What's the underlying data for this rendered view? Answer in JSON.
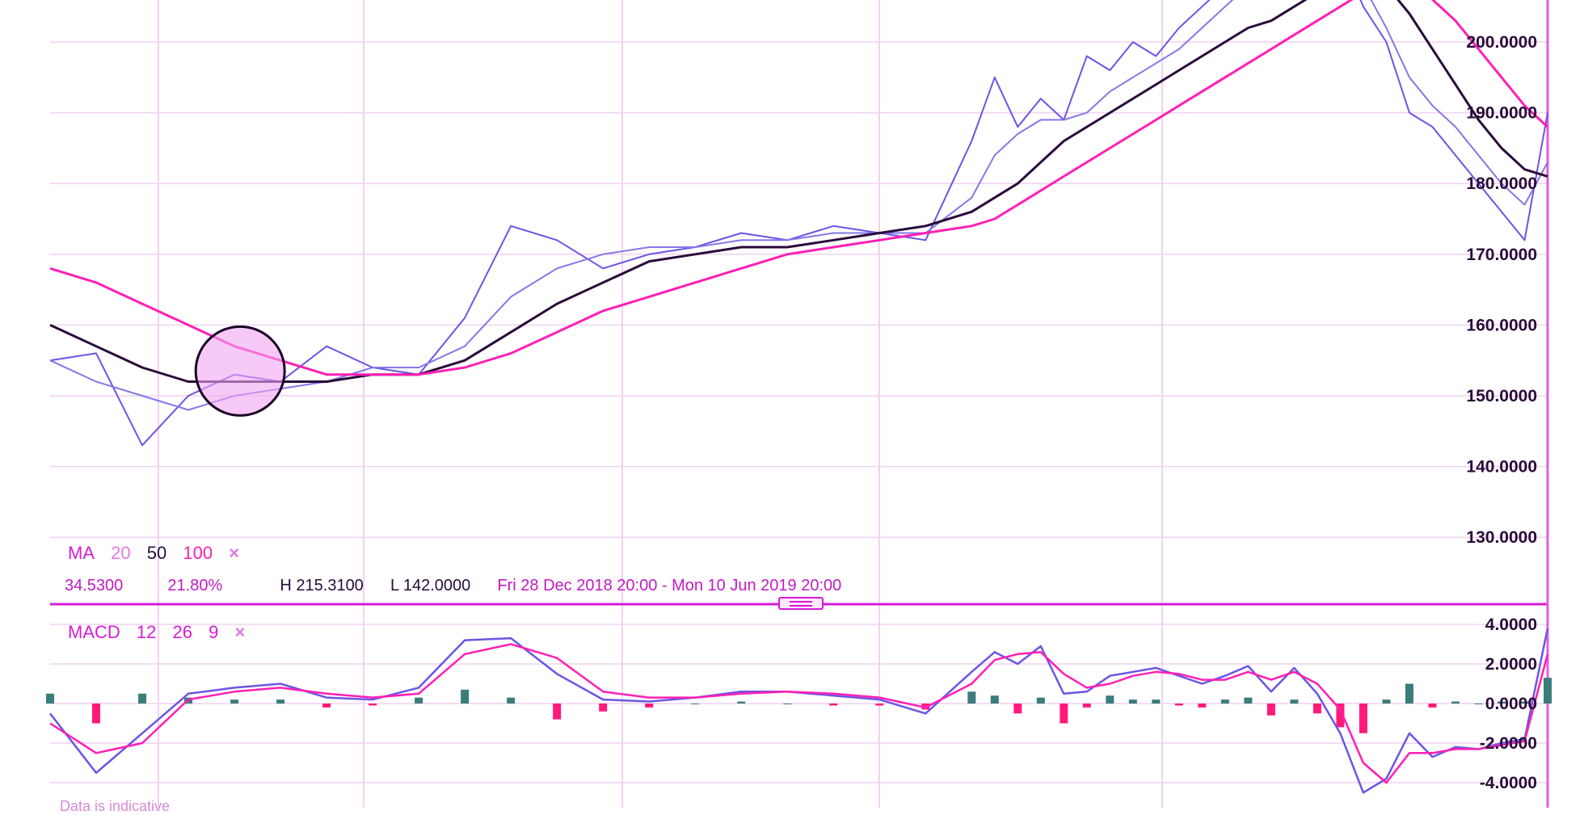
{
  "main_chart": {
    "y_ticks": [
      "200.0000",
      "190.0000",
      "180.0000",
      "170.0000",
      "160.0000",
      "150.0000",
      "140.0000",
      "130.0000"
    ],
    "indicator": {
      "name": "MA",
      "p1": "20",
      "p2": "50",
      "p3": "100",
      "close": "×"
    },
    "stats": {
      "change": "34.5300",
      "pct": "21.80%",
      "high": "H 215.3100",
      "low": "L 142.0000",
      "range": "Fri 28 Dec 2018 20:00 - Mon 10 Jun 2019 20:00"
    }
  },
  "macd_panel": {
    "y_ticks": [
      "4.0000",
      "2.0000",
      "0.0000",
      "-2.0000",
      "-4.0000"
    ],
    "indicator": {
      "name": "MACD",
      "p1": "12",
      "p2": "26",
      "p3": "9",
      "close": "×"
    }
  },
  "footer": {
    "partial_text": "Data is indicative"
  },
  "colors": {
    "price": "#6b55e6",
    "ma20": "#8477e8",
    "ma50": "#2a0a3a",
    "ma100": "#ff1fb4",
    "grid": "#f2d2f2",
    "accent": "#d61bd6",
    "hist_pos": "#3a7d7a",
    "hist_neg": "#ff1a7a"
  },
  "chart_data": [
    {
      "type": "line",
      "title": "",
      "ylim": [
        120,
        216
      ],
      "x": [
        0,
        8,
        16,
        24,
        32,
        40,
        48,
        56,
        64,
        72,
        80,
        88,
        96,
        104,
        112,
        120,
        128,
        136,
        144,
        152,
        160,
        164,
        168,
        172,
        176,
        180,
        184,
        188,
        192,
        196,
        200,
        204,
        208,
        212,
        216,
        220,
        224,
        228,
        232,
        236,
        240,
        244,
        248,
        252,
        256,
        260
      ],
      "series": [
        {
          "name": "price",
          "values": [
            155,
            156,
            143,
            150,
            153,
            152,
            157,
            154,
            153,
            161,
            174,
            172,
            168,
            170,
            171,
            173,
            172,
            174,
            173,
            172,
            186,
            195,
            188,
            192,
            189,
            198,
            196,
            200,
            198,
            202,
            205,
            208,
            212,
            209,
            210,
            214,
            213,
            205,
            200,
            190,
            188,
            184,
            180,
            176,
            172,
            190
          ]
        },
        {
          "name": "MA 20",
          "values": [
            155,
            152,
            150,
            148,
            150,
            151,
            152,
            154,
            154,
            157,
            164,
            168,
            170,
            171,
            171,
            172,
            172,
            173,
            173,
            173,
            178,
            184,
            187,
            189,
            189,
            190,
            193,
            195,
            197,
            199,
            202,
            205,
            208,
            209,
            210,
            211,
            212,
            208,
            202,
            195,
            191,
            188,
            184,
            180,
            177,
            183
          ]
        },
        {
          "name": "MA 50",
          "values": [
            160,
            157,
            154,
            152,
            152,
            152,
            152,
            153,
            153,
            155,
            159,
            163,
            166,
            169,
            170,
            171,
            171,
            172,
            173,
            174,
            176,
            178,
            180,
            183,
            186,
            188,
            190,
            192,
            194,
            196,
            198,
            200,
            202,
            203,
            205,
            207,
            209,
            210,
            208,
            204,
            199,
            194,
            189,
            185,
            182,
            181
          ]
        },
        {
          "name": "MA 100",
          "values": [
            168,
            166,
            163,
            160,
            157,
            155,
            153,
            153,
            153,
            154,
            156,
            159,
            162,
            164,
            166,
            168,
            170,
            171,
            172,
            173,
            174,
            175,
            177,
            179,
            181,
            183,
            185,
            187,
            189,
            191,
            193,
            195,
            197,
            199,
            201,
            203,
            205,
            207,
            208,
            208,
            206,
            203,
            199,
            195,
            191,
            188
          ]
        }
      ],
      "annotation": {
        "type": "circle",
        "x": 33,
        "y": 153.5
      }
    },
    {
      "type": "line",
      "title": "",
      "ylim": [
        -5,
        5
      ],
      "x": [
        0,
        8,
        16,
        24,
        32,
        40,
        48,
        56,
        64,
        72,
        80,
        88,
        96,
        104,
        112,
        120,
        128,
        136,
        144,
        152,
        160,
        164,
        168,
        172,
        176,
        180,
        184,
        188,
        192,
        196,
        200,
        204,
        208,
        212,
        216,
        220,
        224,
        228,
        232,
        236,
        240,
        244,
        248,
        252,
        256,
        260
      ],
      "series": [
        {
          "name": "MACD",
          "values": [
            -0.5,
            -3.5,
            -1.5,
            0.5,
            0.8,
            1.0,
            0.3,
            0.2,
            0.8,
            3.2,
            3.3,
            1.5,
            0.2,
            0.1,
            0.3,
            0.6,
            0.6,
            0.4,
            0.2,
            -0.5,
            1.6,
            2.6,
            2.0,
            2.9,
            0.5,
            0.6,
            1.4,
            1.6,
            1.8,
            1.4,
            1.0,
            1.4,
            1.9,
            0.6,
            1.8,
            0.5,
            -1.5,
            -4.5,
            -3.8,
            -1.5,
            -2.7,
            -2.2,
            -2.3,
            -2.0,
            -1.8,
            3.8
          ]
        },
        {
          "name": "Signal",
          "values": [
            -1.0,
            -2.5,
            -2.0,
            0.2,
            0.6,
            0.8,
            0.5,
            0.3,
            0.5,
            2.5,
            3.0,
            2.3,
            0.6,
            0.3,
            0.3,
            0.5,
            0.6,
            0.5,
            0.3,
            -0.2,
            1.0,
            2.2,
            2.5,
            2.6,
            1.5,
            0.8,
            1.0,
            1.4,
            1.6,
            1.5,
            1.2,
            1.2,
            1.6,
            1.2,
            1.6,
            1.0,
            -0.3,
            -3.0,
            -4.0,
            -2.5,
            -2.5,
            -2.3,
            -2.3,
            -2.1,
            -1.9,
            2.5
          ]
        },
        {
          "name": "Histogram",
          "values": [
            0.5,
            -1.0,
            0.5,
            0.3,
            0.2,
            0.2,
            -0.2,
            -0.1,
            0.3,
            0.7,
            0.3,
            -0.8,
            -0.4,
            -0.2,
            0.0,
            0.1,
            0.0,
            -0.1,
            -0.1,
            -0.3,
            0.6,
            0.4,
            -0.5,
            0.3,
            -1.0,
            -0.2,
            0.4,
            0.2,
            0.2,
            -0.1,
            -0.2,
            0.2,
            0.3,
            -0.6,
            0.2,
            -0.5,
            -1.2,
            -1.5,
            0.2,
            1.0,
            -0.2,
            0.1,
            0.0,
            0.1,
            0.1,
            1.3
          ]
        }
      ]
    }
  ]
}
